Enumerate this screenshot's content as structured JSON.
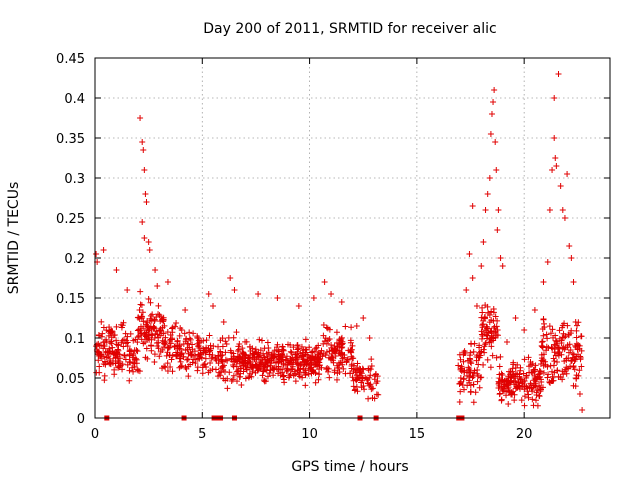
{
  "chart_data": {
    "type": "scatter",
    "title": "Day 200 of 2011, SRMTID for receiver alic",
    "xlabel": "GPS time / hours",
    "ylabel": "SRMTID / TECUs",
    "xlim": [
      0,
      24
    ],
    "ylim": [
      0,
      0.45
    ],
    "x_ticks": [
      0,
      5,
      10,
      15,
      20
    ],
    "x_tick_labels": [
      "0",
      "5",
      "10",
      "15",
      "20"
    ],
    "y_ticks": [
      0,
      0.05,
      0.1,
      0.15,
      0.2,
      0.25,
      0.3,
      0.35,
      0.4,
      0.45
    ],
    "y_tick_labels": [
      "0",
      "0.05",
      "0.1",
      "0.15",
      "0.2",
      "0.25",
      "0.3",
      "0.35",
      "0.4",
      "0.45"
    ],
    "grid": true,
    "marker": "+",
    "color": "#e00000",
    "seed": 2011,
    "density_segments": [
      {
        "start": 0.0,
        "end": 2.0,
        "mean": 0.085,
        "spread": 0.045,
        "count": 160
      },
      {
        "start": 2.0,
        "end": 3.2,
        "mean": 0.11,
        "spread": 0.055,
        "count": 110
      },
      {
        "start": 3.2,
        "end": 5.0,
        "mean": 0.085,
        "spread": 0.04,
        "count": 120
      },
      {
        "start": 5.0,
        "end": 6.6,
        "mean": 0.075,
        "spread": 0.04,
        "count": 90
      },
      {
        "start": 6.6,
        "end": 10.5,
        "mean": 0.07,
        "spread": 0.035,
        "count": 380
      },
      {
        "start": 10.5,
        "end": 12.0,
        "mean": 0.08,
        "spread": 0.045,
        "count": 110
      },
      {
        "start": 12.0,
        "end": 13.2,
        "mean": 0.05,
        "spread": 0.035,
        "count": 70
      },
      {
        "start": 16.9,
        "end": 18.0,
        "mean": 0.06,
        "spread": 0.045,
        "count": 80
      },
      {
        "start": 18.0,
        "end": 18.8,
        "mean": 0.11,
        "spread": 0.06,
        "count": 70
      },
      {
        "start": 18.8,
        "end": 20.8,
        "mean": 0.045,
        "spread": 0.035,
        "count": 170
      },
      {
        "start": 20.8,
        "end": 22.7,
        "mean": 0.08,
        "spread": 0.06,
        "count": 150
      }
    ],
    "points": [
      [
        0.05,
        0.205
      ],
      [
        0.1,
        0.195
      ],
      [
        0.4,
        0.21
      ],
      [
        1.0,
        0.185
      ],
      [
        1.5,
        0.16
      ],
      [
        2.1,
        0.375
      ],
      [
        2.2,
        0.345
      ],
      [
        2.25,
        0.335
      ],
      [
        2.3,
        0.31
      ],
      [
        2.35,
        0.28
      ],
      [
        2.4,
        0.27
      ],
      [
        2.2,
        0.245
      ],
      [
        2.3,
        0.225
      ],
      [
        2.5,
        0.22
      ],
      [
        2.55,
        0.21
      ],
      [
        2.8,
        0.185
      ],
      [
        2.9,
        0.165
      ],
      [
        3.4,
        0.17
      ],
      [
        4.2,
        0.135
      ],
      [
        5.3,
        0.155
      ],
      [
        5.5,
        0.14
      ],
      [
        6.0,
        0.12
      ],
      [
        6.3,
        0.175
      ],
      [
        6.5,
        0.16
      ],
      [
        7.6,
        0.155
      ],
      [
        8.5,
        0.15
      ],
      [
        9.5,
        0.14
      ],
      [
        10.2,
        0.15
      ],
      [
        10.7,
        0.17
      ],
      [
        11.0,
        0.155
      ],
      [
        11.5,
        0.145
      ],
      [
        12.2,
        0.115
      ],
      [
        12.5,
        0.125
      ],
      [
        12.8,
        0.1
      ],
      [
        12.9,
        0.065
      ],
      [
        17.0,
        0.02
      ],
      [
        17.3,
        0.16
      ],
      [
        17.45,
        0.205
      ],
      [
        17.6,
        0.175
      ],
      [
        17.6,
        0.265
      ],
      [
        17.8,
        0.14
      ],
      [
        18.0,
        0.19
      ],
      [
        18.1,
        0.22
      ],
      [
        18.2,
        0.26
      ],
      [
        18.3,
        0.28
      ],
      [
        18.4,
        0.3
      ],
      [
        18.45,
        0.355
      ],
      [
        18.5,
        0.38
      ],
      [
        18.55,
        0.395
      ],
      [
        18.6,
        0.41
      ],
      [
        18.65,
        0.345
      ],
      [
        18.7,
        0.31
      ],
      [
        18.75,
        0.235
      ],
      [
        18.8,
        0.26
      ],
      [
        18.9,
        0.2
      ],
      [
        19.0,
        0.19
      ],
      [
        19.2,
        0.095
      ],
      [
        19.6,
        0.125
      ],
      [
        20.0,
        0.11
      ],
      [
        20.5,
        0.135
      ],
      [
        20.9,
        0.17
      ],
      [
        21.1,
        0.195
      ],
      [
        21.2,
        0.26
      ],
      [
        21.3,
        0.31
      ],
      [
        21.4,
        0.35
      ],
      [
        21.5,
        0.315
      ],
      [
        21.45,
        0.325
      ],
      [
        21.6,
        0.43
      ],
      [
        21.4,
        0.4
      ],
      [
        21.7,
        0.29
      ],
      [
        21.8,
        0.26
      ],
      [
        21.9,
        0.25
      ],
      [
        22.0,
        0.305
      ],
      [
        22.1,
        0.215
      ],
      [
        22.2,
        0.2
      ],
      [
        22.3,
        0.17
      ],
      [
        22.4,
        0.12
      ],
      [
        22.5,
        0.09
      ],
      [
        22.6,
        0.03
      ],
      [
        22.7,
        0.01
      ]
    ],
    "zero_markers": [
      0.55,
      4.15,
      5.55,
      5.75,
      5.85,
      6.5,
      12.35,
      13.1,
      16.95,
      17.1
    ]
  }
}
